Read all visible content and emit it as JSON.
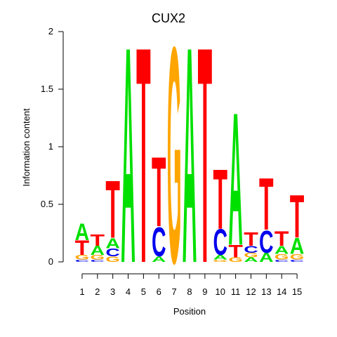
{
  "chart_data": {
    "type": "sequence-logo",
    "title": "CUX2",
    "xlabel": "Position",
    "ylabel": "Information content",
    "ylim": [
      0,
      2
    ],
    "y_ticks": [
      "0",
      "0.5",
      "1",
      "1.5",
      "2"
    ],
    "x_ticks": [
      "1",
      "2",
      "3",
      "4",
      "5",
      "6",
      "7",
      "8",
      "9",
      "10",
      "11",
      "12",
      "13",
      "14",
      "15"
    ],
    "colors": {
      "A": "#00e000",
      "C": "#0000ee",
      "G": "#ffa500",
      "T": "#ff0000"
    },
    "positions": [
      {
        "pos": "1",
        "stack": [
          {
            "letter": "C",
            "height": 0.02
          },
          {
            "letter": "G",
            "height": 0.04
          },
          {
            "letter": "T",
            "height": 0.13
          },
          {
            "letter": "A",
            "height": 0.15
          }
        ]
      },
      {
        "pos": "2",
        "stack": [
          {
            "letter": "C",
            "height": 0.02
          },
          {
            "letter": "G",
            "height": 0.04
          },
          {
            "letter": "A",
            "height": 0.08
          },
          {
            "letter": "T",
            "height": 0.1
          }
        ]
      },
      {
        "pos": "3",
        "stack": [
          {
            "letter": "G",
            "height": 0.05
          },
          {
            "letter": "C",
            "height": 0.07
          },
          {
            "letter": "A",
            "height": 0.09
          },
          {
            "letter": "T",
            "height": 0.51
          }
        ]
      },
      {
        "pos": "4",
        "stack": [
          {
            "letter": "A",
            "height": 1.92
          }
        ]
      },
      {
        "pos": "5",
        "stack": [
          {
            "letter": "T",
            "height": 1.92
          }
        ]
      },
      {
        "pos": "6",
        "stack": [
          {
            "letter": "A",
            "height": 0.05
          },
          {
            "letter": "C",
            "height": 0.26
          },
          {
            "letter": "T",
            "height": 0.62
          }
        ]
      },
      {
        "pos": "7",
        "stack": [
          {
            "letter": "G",
            "height": 1.92
          }
        ]
      },
      {
        "pos": "8",
        "stack": [
          {
            "letter": "A",
            "height": 1.92
          }
        ]
      },
      {
        "pos": "9",
        "stack": [
          {
            "letter": "T",
            "height": 1.92
          }
        ]
      },
      {
        "pos": "10",
        "stack": [
          {
            "letter": "G",
            "height": 0.02
          },
          {
            "letter": "A",
            "height": 0.04
          },
          {
            "letter": "C",
            "height": 0.23
          },
          {
            "letter": "T",
            "height": 0.53
          }
        ]
      },
      {
        "pos": "11",
        "stack": [
          {
            "letter": "G",
            "height": 0.04
          },
          {
            "letter": "T",
            "height": 0.11
          },
          {
            "letter": "A",
            "height": 1.18
          }
        ]
      },
      {
        "pos": "12",
        "stack": [
          {
            "letter": "A",
            "height": 0.04
          },
          {
            "letter": "G",
            "height": 0.04
          },
          {
            "letter": "C",
            "height": 0.06
          },
          {
            "letter": "T",
            "height": 0.12
          }
        ]
      },
      {
        "pos": "13",
        "stack": [
          {
            "letter": "A",
            "height": 0.08
          },
          {
            "letter": "C",
            "height": 0.2
          },
          {
            "letter": "T",
            "height": 0.46
          }
        ]
      },
      {
        "pos": "14",
        "stack": [
          {
            "letter": "C",
            "height": 0.02
          },
          {
            "letter": "G",
            "height": 0.05
          },
          {
            "letter": "A",
            "height": 0.07
          },
          {
            "letter": "T",
            "height": 0.13
          }
        ]
      },
      {
        "pos": "15",
        "stack": [
          {
            "letter": "C",
            "height": 0.02
          },
          {
            "letter": "G",
            "height": 0.05
          },
          {
            "letter": "A",
            "height": 0.14
          },
          {
            "letter": "T",
            "height": 0.38
          }
        ]
      }
    ]
  }
}
